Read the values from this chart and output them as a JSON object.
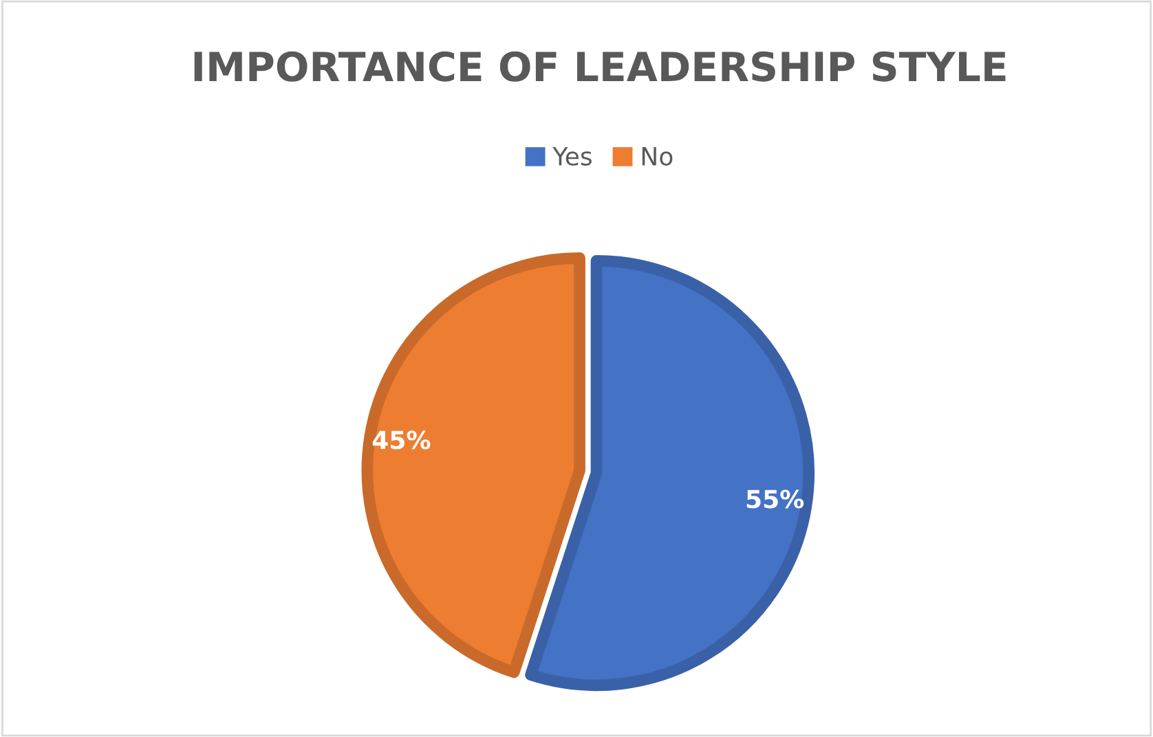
{
  "chart_data": {
    "type": "pie",
    "title": "IMPORTANCE OF LEADERSHIP STYLE",
    "categories": [
      "Yes",
      "No"
    ],
    "values": [
      55,
      45
    ],
    "colors": [
      "#4472c4",
      "#ed7d31"
    ],
    "value_labels": [
      "55%",
      "45%"
    ],
    "legend": "top"
  }
}
